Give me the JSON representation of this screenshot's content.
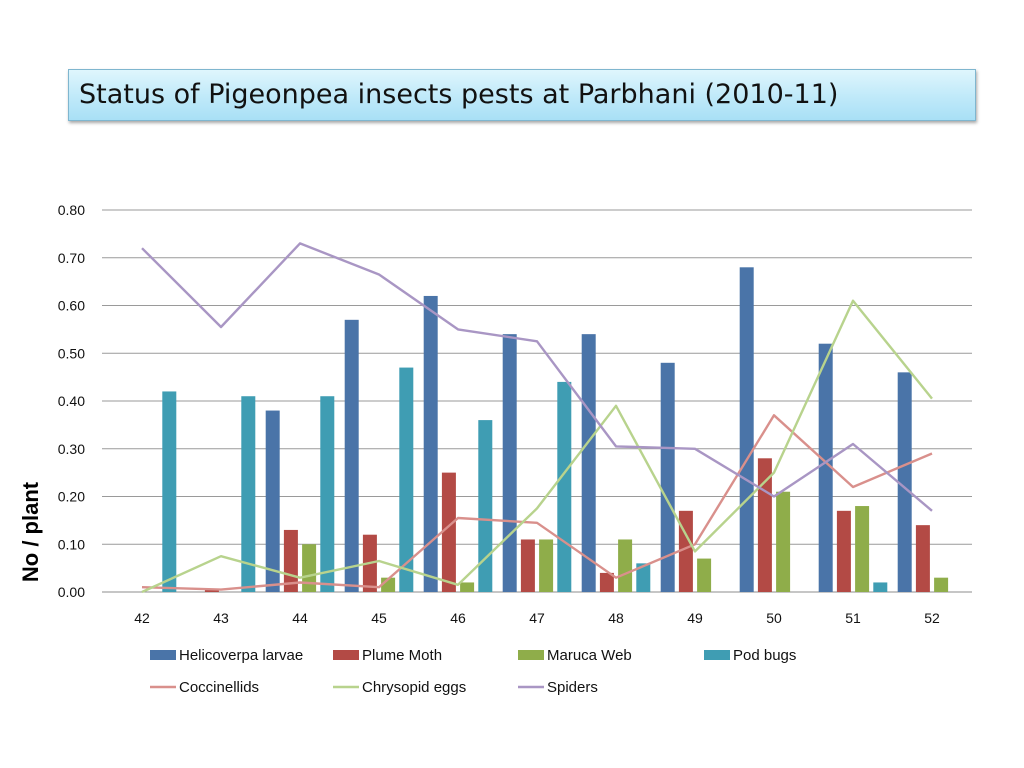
{
  "header": {
    "title": "Status of Pigeonpea insects pests at Parbhani  (2010-11)"
  },
  "chart_data": {
    "type": "bar",
    "title": "Status of Pigeonpea insects pests at Parbhani  (2010-11)",
    "xlabel": "",
    "ylabel": "No / plant",
    "ylim": [
      0,
      0.8
    ],
    "yticks": [
      "0.00",
      "0.10",
      "0.20",
      "0.30",
      "0.40",
      "0.50",
      "0.60",
      "0.70",
      "0.80"
    ],
    "grid": true,
    "legend_position": "bottom",
    "categories": [
      "42",
      "43",
      "44",
      "45",
      "46",
      "47",
      "48",
      "49",
      "50",
      "51",
      "52"
    ],
    "bar_series": [
      {
        "name": "Helicoverpa larvae",
        "color": "#4a74a8",
        "values": [
          0,
          0,
          0.38,
          0.57,
          0.62,
          0.54,
          0.54,
          0.48,
          0.68,
          0.52,
          0.46
        ]
      },
      {
        "name": "Plume Moth",
        "color": "#b34a45",
        "values": [
          0,
          0.005,
          0.13,
          0.12,
          0.25,
          0.11,
          0.04,
          0.17,
          0.28,
          0.17,
          0.14
        ]
      },
      {
        "name": "Maruca Web",
        "color": "#8fad4a",
        "values": [
          0,
          0,
          0.1,
          0.03,
          0.02,
          0.11,
          0.11,
          0.07,
          0.21,
          0.18,
          0.03
        ]
      },
      {
        "name": "Pod bugs",
        "color": "#3f9db3",
        "values": [
          0.42,
          0.41,
          0.41,
          0.47,
          0.36,
          0.44,
          0.06,
          0,
          0,
          0.02,
          0
        ]
      }
    ],
    "line_series": [
      {
        "name": "Coccinellids",
        "color": "#d9908c",
        "values": [
          0.01,
          0.005,
          0.02,
          0.01,
          0.155,
          0.145,
          0.03,
          0.1,
          0.37,
          0.22,
          0.29
        ]
      },
      {
        "name": "Chrysopid eggs",
        "color": "#b8d38d",
        "values": [
          0,
          0.075,
          0.03,
          0.065,
          0.015,
          0.175,
          0.39,
          0.085,
          0.25,
          0.61,
          0.405
        ]
      },
      {
        "name": "Spiders",
        "color": "#a996c4",
        "values": [
          0.72,
          0.555,
          0.73,
          0.665,
          0.55,
          0.525,
          0.305,
          0.3,
          0.2,
          0.31,
          0.17
        ]
      }
    ]
  }
}
